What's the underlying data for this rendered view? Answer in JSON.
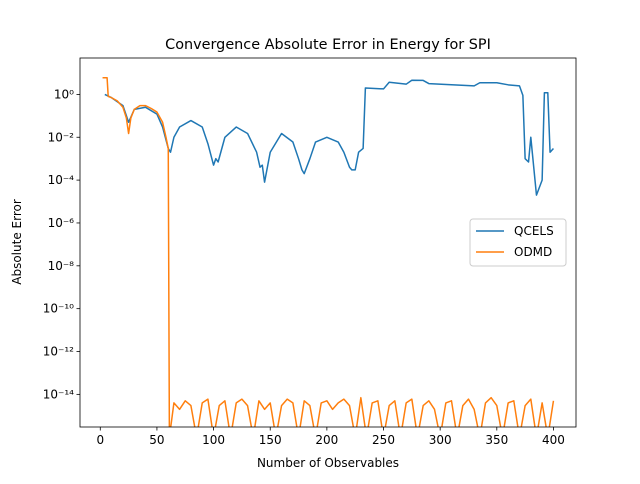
{
  "chart_data": {
    "type": "line",
    "title": "Convergence Absolute Error in Energy for SPI",
    "x_label": "Number of Observables",
    "y_label": "Absolute Error",
    "log_y": true,
    "legend": "center right",
    "xlim": [
      -17.9,
      419.9
    ],
    "ylim": [
      3e-16,
      50
    ],
    "xticks": [
      0,
      50,
      100,
      150,
      200,
      250,
      300,
      350,
      400
    ],
    "yticks": [
      {
        "value": 1,
        "label": "10⁰"
      },
      {
        "value": 0.01,
        "label": "10⁻²"
      },
      {
        "value": 0.0001,
        "label": "10⁻⁴"
      },
      {
        "value": 1e-06,
        "label": "10⁻⁶"
      },
      {
        "value": 1e-08,
        "label": "10⁻⁸"
      },
      {
        "value": 1e-10,
        "label": "10⁻¹⁰"
      },
      {
        "value": 1e-12,
        "label": "10⁻¹²"
      },
      {
        "value": 1e-14,
        "label": "10⁻¹⁴"
      }
    ],
    "series": [
      {
        "name": "QCELS",
        "color": "#1f77b4",
        "x": [
          4,
          10,
          20,
          25,
          30,
          40,
          50,
          55,
          60,
          62,
          65,
          70,
          80,
          90,
          95,
          100,
          102,
          104,
          110,
          120,
          130,
          138,
          141,
          143,
          145,
          150,
          160,
          170,
          175,
          178,
          180,
          185,
          190,
          200,
          210,
          215,
          220,
          222,
          225,
          228,
          232,
          234,
          250,
          255,
          270,
          275,
          285,
          290,
          330,
          335,
          350,
          360,
          370,
          373,
          375,
          378,
          380,
          385,
          390,
          392,
          395,
          397,
          400
        ],
        "values": [
          1.0,
          0.7,
          0.3,
          0.05,
          0.2,
          0.25,
          0.12,
          0.03,
          0.003,
          0.002,
          0.01,
          0.03,
          0.06,
          0.03,
          0.005,
          0.0005,
          0.001,
          0.0007,
          0.01,
          0.03,
          0.015,
          0.002,
          0.0004,
          0.0005,
          8e-05,
          0.002,
          0.015,
          0.006,
          0.001,
          0.0003,
          0.0002,
          0.001,
          0.006,
          0.01,
          0.006,
          0.002,
          0.0004,
          0.0003,
          0.0003,
          0.002,
          0.003,
          2.0,
          1.8,
          3.7,
          3.0,
          4.6,
          4.5,
          3.2,
          2.5,
          3.5,
          3.5,
          2.8,
          2.5,
          0.9,
          0.001,
          0.0007,
          0.01,
          2e-05,
          0.0001,
          1.2,
          1.2,
          0.002,
          0.003
        ]
      },
      {
        "name": "ODMD",
        "color": "#ff7f0e",
        "x": [
          2,
          4,
          6,
          7,
          10,
          15,
          20,
          23,
          25,
          27,
          30,
          35,
          40,
          45,
          50,
          55,
          58,
          60,
          61,
          65,
          70,
          75,
          80,
          85,
          90,
          95,
          100,
          105,
          110,
          115,
          120,
          125,
          130,
          135,
          140,
          145,
          150,
          155,
          160,
          165,
          170,
          175,
          180,
          185,
          190,
          195,
          200,
          205,
          210,
          215,
          220,
          225,
          230,
          235,
          240,
          245,
          250,
          255,
          260,
          265,
          270,
          275,
          280,
          285,
          290,
          295,
          300,
          305,
          310,
          315,
          320,
          325,
          330,
          335,
          340,
          345,
          350,
          355,
          360,
          365,
          370,
          375,
          380,
          385,
          390,
          395,
          400
        ],
        "values": [
          6,
          6,
          6,
          0.8,
          0.7,
          0.5,
          0.25,
          0.08,
          0.015,
          0.08,
          0.2,
          0.3,
          0.3,
          0.22,
          0.15,
          0.05,
          0.01,
          0.003,
          1e-16,
          4e-15,
          2e-15,
          5e-15,
          3e-15,
          1e-16,
          4e-15,
          6e-15,
          1e-16,
          3e-15,
          5e-15,
          1e-16,
          4e-15,
          6e-15,
          3e-15,
          1e-16,
          5e-15,
          2e-15,
          4e-15,
          1e-16,
          3e-15,
          6e-15,
          4e-15,
          1e-16,
          5e-15,
          3e-15,
          1e-16,
          4e-15,
          5e-15,
          2e-15,
          4e-15,
          6e-15,
          3e-15,
          1e-16,
          7e-15,
          1e-16,
          4e-15,
          5e-15,
          1e-16,
          3e-15,
          5e-15,
          1e-16,
          4e-15,
          6e-15,
          1e-16,
          3e-15,
          5e-15,
          2e-15,
          1e-16,
          4e-15,
          5e-15,
          1e-16,
          3e-15,
          6e-15,
          2e-15,
          1e-16,
          4e-15,
          7e-15,
          3e-15,
          1e-16,
          4e-15,
          5e-15,
          1e-16,
          3e-15,
          6e-15,
          1e-16,
          4e-15,
          1e-16,
          5e-15
        ]
      }
    ]
  }
}
